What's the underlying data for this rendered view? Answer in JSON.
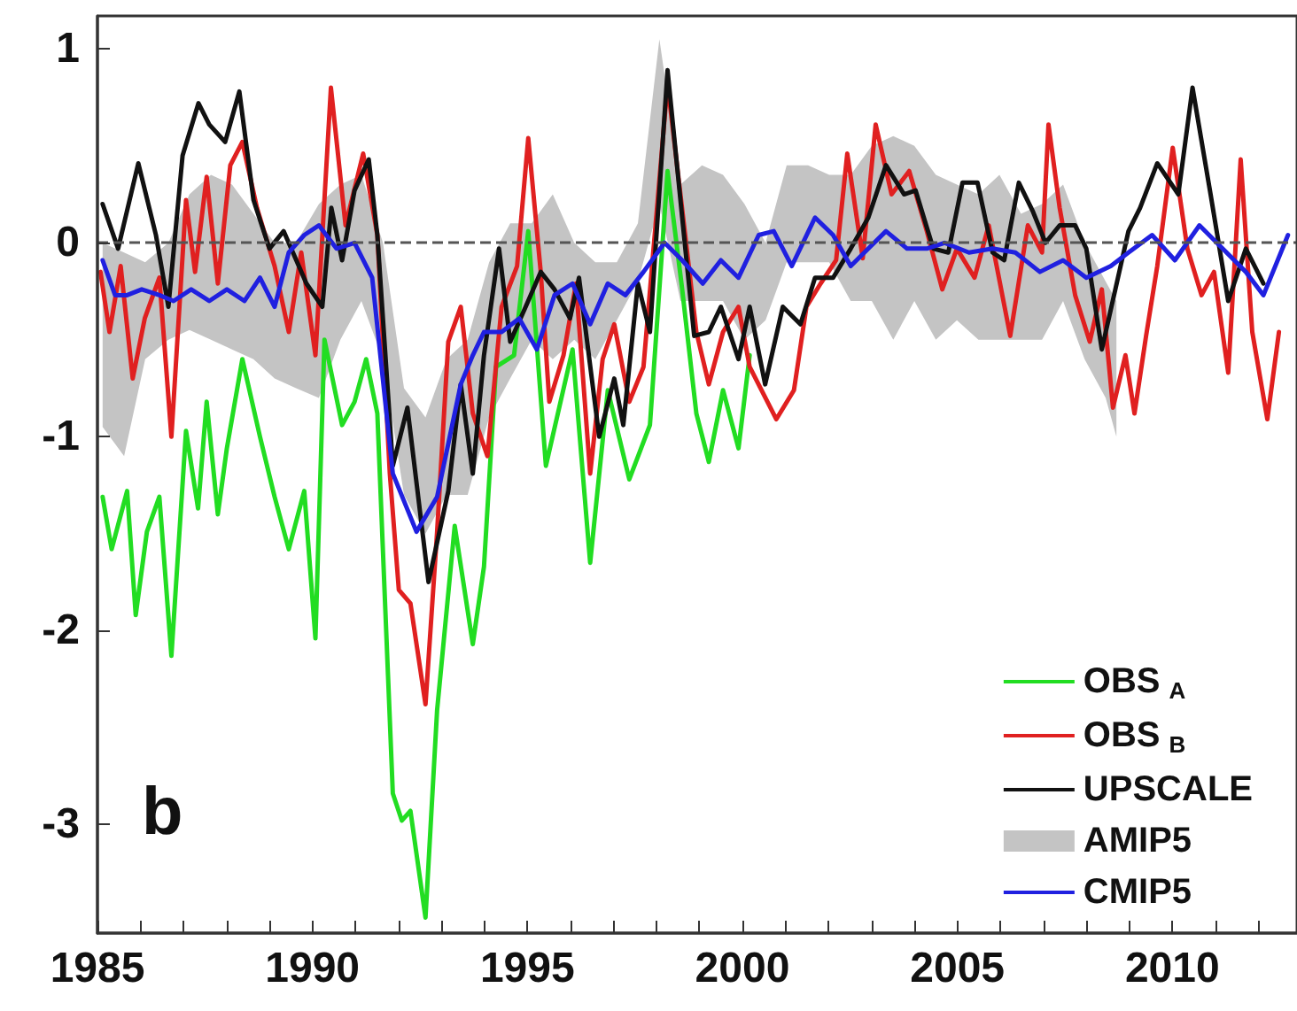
{
  "chart_data": {
    "type": "line",
    "xlim": [
      1985,
      2012.9
    ],
    "ylim": [
      -3.56,
      1.17
    ],
    "xticks": [
      1985,
      {
        "value": 1986,
        "label": null
      },
      {
        "value": 1987,
        "label": null
      },
      {
        "value": 1988,
        "label": null
      },
      {
        "value": 1989,
        "label": null
      },
      1990,
      {
        "value": 1991,
        "label": null
      },
      {
        "value": 1992,
        "label": null
      },
      {
        "value": 1993,
        "label": null
      },
      {
        "value": 1994,
        "label": null
      },
      1995,
      {
        "value": 1996,
        "label": null
      },
      {
        "value": 1997,
        "label": null
      },
      {
        "value": 1998,
        "label": null
      },
      {
        "value": 1999,
        "label": null
      },
      2000,
      {
        "value": 2001,
        "label": null
      },
      {
        "value": 2002,
        "label": null
      },
      {
        "value": 2003,
        "label": null
      },
      {
        "value": 2004,
        "label": null
      },
      2005,
      {
        "value": 2006,
        "label": null
      },
      {
        "value": 2007,
        "label": null
      },
      {
        "value": 2008,
        "label": null
      },
      {
        "value": 2009,
        "label": null
      },
      2010,
      {
        "value": 2011,
        "label": null
      },
      {
        "value": 2012,
        "label": null
      }
    ],
    "yticks": [
      -3,
      -2,
      -1,
      0,
      1
    ],
    "grid": false,
    "legend": "bottom right",
    "marker": "none",
    "line_style": "solid",
    "annotations": [
      "b"
    ],
    "ref_lines": [
      {
        "axis": "y",
        "value": 0,
        "color": "#555555",
        "line_style": "dashed"
      }
    ],
    "series": [
      {
        "name": "OBS$_{A}$",
        "color": "#22dd22",
        "x": [
          1985.12,
          1985.33,
          1985.69,
          1985.89,
          1986.15,
          1986.44,
          1986.72,
          1987.06,
          1987.34,
          1987.54,
          1987.8,
          1988.01,
          1988.37,
          1988.78,
          1989.12,
          1989.45,
          1989.81,
          1990.07,
          1990.28,
          1990.69,
          1990.98,
          1991.25,
          1991.51,
          1991.87,
          1992.08,
          1992.28,
          1992.63,
          1992.9,
          1993.31,
          1993.73,
          1993.99,
          1994.27,
          1994.69,
          1995.02,
          1995.43,
          1996.05,
          1996.46,
          1996.87,
          1997.37,
          1997.85,
          1998.26,
          1998.6,
          1998.93,
          1999.22,
          1999.55,
          1999.91,
          2000.17
        ],
        "values": [
          -1.31,
          -1.58,
          -1.28,
          -1.92,
          -1.49,
          -1.31,
          -2.13,
          -0.97,
          -1.37,
          -0.82,
          -1.4,
          -1.06,
          -0.6,
          -1.0,
          -1.31,
          -1.58,
          -1.28,
          -2.04,
          -0.5,
          -0.94,
          -0.82,
          -0.6,
          -0.88,
          -2.84,
          -2.98,
          -2.93,
          -3.48,
          -2.41,
          -1.46,
          -2.07,
          -1.67,
          -0.64,
          -0.58,
          0.06,
          -1.15,
          -0.55,
          -1.65,
          -0.76,
          -1.22,
          -0.94,
          0.37,
          -0.24,
          -0.88,
          -1.13,
          -0.76,
          -1.06,
          -0.58
        ]
      },
      {
        "name": "OBS$_{B}$",
        "color": "#e02020",
        "x": [
          1985.07,
          1985.28,
          1985.54,
          1985.82,
          1986.1,
          1986.44,
          1986.72,
          1987.06,
          1987.27,
          1987.54,
          1987.8,
          1988.09,
          1988.37,
          1988.71,
          1989.12,
          1989.45,
          1989.74,
          1990.07,
          1990.43,
          1990.77,
          1991.18,
          1991.51,
          1991.8,
          1992.01,
          1992.28,
          1992.63,
          1992.9,
          1993.16,
          1993.45,
          1993.73,
          1994.07,
          1994.4,
          1994.76,
          1995.02,
          1995.31,
          1995.51,
          1995.84,
          1996.13,
          1996.46,
          1996.75,
          1997.02,
          1997.37,
          1997.7,
          1998.26,
          1998.67,
          1998.93,
          1999.22,
          1999.55,
          1999.91,
          2000.17,
          2000.79,
          2001.2,
          2001.49,
          2001.82,
          2002.18,
          2002.44,
          2002.8,
          2003.1,
          2003.47,
          2003.88,
          2004.29,
          2004.65,
          2004.99,
          2005.4,
          2005.73,
          2006.23,
          2006.64,
          2006.97,
          2007.12,
          2007.38,
          2007.74,
          2008.08,
          2008.36,
          2008.62,
          2008.91,
          2009.12,
          2009.39,
          2009.65,
          2010.01,
          2010.35,
          2010.68,
          2010.97,
          2011.3,
          2011.59,
          2011.86,
          2012.21,
          2012.48
        ],
        "values": [
          -0.15,
          -0.46,
          -0.12,
          -0.7,
          -0.39,
          -0.18,
          -1.0,
          0.22,
          -0.15,
          0.34,
          -0.21,
          0.4,
          0.52,
          0.18,
          -0.12,
          -0.46,
          -0.05,
          -0.58,
          0.8,
          0.09,
          0.46,
          0.04,
          -1.19,
          -1.79,
          -1.86,
          -2.38,
          -1.49,
          -0.51,
          -0.33,
          -0.88,
          -1.1,
          -0.33,
          -0.12,
          0.54,
          -0.15,
          -0.82,
          -0.58,
          -0.21,
          -1.19,
          -0.6,
          -0.42,
          -0.82,
          -0.64,
          0.82,
          0.04,
          -0.46,
          -0.73,
          -0.46,
          -0.33,
          -0.64,
          -0.91,
          -0.76,
          -0.33,
          -0.21,
          -0.09,
          0.46,
          -0.08,
          0.61,
          0.25,
          0.37,
          0.06,
          -0.24,
          -0.03,
          -0.18,
          0.09,
          -0.48,
          0.09,
          -0.05,
          0.61,
          0.18,
          -0.27,
          -0.51,
          -0.24,
          -0.85,
          -0.58,
          -0.88,
          -0.48,
          -0.12,
          0.49,
          -0.03,
          -0.27,
          -0.15,
          -0.67,
          0.43,
          -0.46,
          -0.91,
          -0.46
        ]
      },
      {
        "name": "UPSCALE",
        "color": "#111111",
        "x": [
          1985.12,
          1985.48,
          1985.95,
          1986.36,
          1986.65,
          1986.98,
          1987.35,
          1987.6,
          1987.97,
          1988.3,
          1988.63,
          1989.0,
          1989.33,
          1989.86,
          1990.23,
          1990.44,
          1990.69,
          1990.98,
          1991.31,
          1991.51,
          1991.87,
          1992.21,
          1992.7,
          1993.16,
          1993.45,
          1993.73,
          1993.99,
          1994.34,
          1994.6,
          1994.96,
          1995.31,
          1995.63,
          1995.99,
          1996.2,
          1996.67,
          1997.02,
          1997.23,
          1997.57,
          1997.85,
          1998.26,
          1998.6,
          1998.88,
          1999.22,
          1999.5,
          1999.91,
          2000.17,
          2000.53,
          2000.94,
          2001.35,
          2001.69,
          2002.11,
          2002.52,
          2002.93,
          2003.34,
          2003.76,
          2004.03,
          2004.44,
          2004.79,
          2005.12,
          2005.47,
          2005.82,
          2006.09,
          2006.43,
          2006.76,
          2007.05,
          2007.38,
          2007.74,
          2008.0,
          2008.36,
          2008.98,
          2009.25,
          2009.65,
          2010.14,
          2010.47,
          2010.89,
          2011.3,
          2011.71,
          2012.12
        ],
        "values": [
          0.2,
          -0.03,
          0.41,
          0.04,
          -0.33,
          0.45,
          0.72,
          0.61,
          0.52,
          0.78,
          0.22,
          -0.03,
          0.06,
          -0.21,
          -0.33,
          0.18,
          -0.09,
          0.27,
          0.43,
          0.04,
          -1.15,
          -0.85,
          -1.75,
          -1.28,
          -0.73,
          -1.19,
          -0.58,
          -0.03,
          -0.51,
          -0.33,
          -0.15,
          -0.24,
          -0.39,
          -0.18,
          -1.0,
          -0.7,
          -0.94,
          -0.21,
          -0.46,
          0.89,
          0.13,
          -0.48,
          -0.46,
          -0.33,
          -0.6,
          -0.33,
          -0.73,
          -0.33,
          -0.42,
          -0.18,
          -0.18,
          -0.03,
          0.13,
          0.4,
          0.25,
          0.27,
          -0.03,
          -0.05,
          0.31,
          0.31,
          -0.05,
          -0.09,
          0.31,
          0.16,
          0.0,
          0.09,
          0.09,
          -0.03,
          -0.55,
          0.06,
          0.18,
          0.41,
          0.25,
          0.8,
          0.25,
          -0.3,
          -0.03,
          -0.21
        ]
      },
      {
        "name": "AMIP5",
        "color": "#c4c4c4",
        "x": [
          1985.12,
          1985.62,
          1986.11,
          1986.65,
          1987.14,
          1987.64,
          1988.13,
          1988.63,
          1989.12,
          1989.62,
          1990.15,
          1990.65,
          1991.14,
          1991.64,
          1992.13,
          1992.63,
          1993.12,
          1993.61,
          1994.11,
          1994.6,
          1995.1,
          1995.59,
          1996.09,
          1996.58,
          1997.08,
          1997.57,
          1998.07,
          1998.56,
          1999.06,
          1999.55,
          2000.05,
          2000.54,
          2001.03,
          2001.53,
          2002.02,
          2002.52,
          2003.01,
          2003.51,
          2004.0,
          2004.5,
          2004.99,
          2005.49,
          2005.98,
          2006.48,
          2006.97,
          2007.46,
          2007.96,
          2008.45,
          2008.7
        ],
        "lower": [
          -0.95,
          -1.1,
          -0.6,
          -0.5,
          -0.45,
          -0.5,
          -0.55,
          -0.6,
          -0.7,
          -0.75,
          -0.8,
          -0.5,
          -0.3,
          -0.6,
          -1.3,
          -1.5,
          -1.3,
          -1.3,
          -0.9,
          -0.7,
          -0.5,
          -0.6,
          -0.5,
          -0.6,
          -0.4,
          -0.2,
          0.2,
          -0.3,
          -0.3,
          -0.3,
          -0.5,
          -0.4,
          -0.1,
          -0.1,
          -0.1,
          -0.3,
          -0.3,
          -0.5,
          -0.3,
          -0.5,
          -0.4,
          -0.5,
          -0.5,
          -0.5,
          -0.5,
          -0.3,
          -0.6,
          -0.8,
          -1.0
        ],
        "upper": [
          0.0,
          -0.05,
          -0.1,
          0.0,
          0.25,
          0.35,
          0.3,
          0.15,
          0.0,
          0.0,
          0.2,
          0.3,
          0.35,
          0.0,
          -0.75,
          -0.9,
          -0.6,
          -0.5,
          -0.1,
          0.1,
          0.1,
          0.25,
          0.0,
          -0.1,
          -0.1,
          0.1,
          1.05,
          0.3,
          0.4,
          0.35,
          0.2,
          0.0,
          0.4,
          0.4,
          0.35,
          0.35,
          0.5,
          0.55,
          0.5,
          0.35,
          0.3,
          0.25,
          0.35,
          0.15,
          0.2,
          0.3,
          0.0,
          -0.2,
          -0.3
        ],
        "values": [
          null,
          null,
          null,
          null,
          null,
          null,
          null,
          null,
          null,
          null,
          null,
          null,
          null,
          null,
          null,
          null,
          null,
          null,
          null,
          null,
          null,
          null,
          null,
          null,
          null,
          null,
          null,
          null,
          null,
          null,
          null,
          null,
          null,
          null,
          null,
          null,
          null,
          null,
          null,
          null,
          null,
          null,
          null,
          null,
          null,
          null,
          null,
          null,
          null
        ]
      },
      {
        "name": "CMIP5",
        "color": "#2020e0",
        "x": [
          1985.12,
          1985.41,
          1985.69,
          1986.03,
          1986.44,
          1986.77,
          1987.18,
          1987.6,
          1988.01,
          1988.42,
          1988.78,
          1989.12,
          1989.45,
          1989.81,
          1990.15,
          1990.56,
          1990.98,
          1991.39,
          1991.87,
          1992.42,
          1992.9,
          1993.45,
          1993.73,
          1993.99,
          1994.4,
          1994.81,
          1995.22,
          1995.63,
          1996.05,
          1996.46,
          1996.87,
          1997.28,
          1997.7,
          1998.19,
          1998.6,
          1999.08,
          1999.5,
          1999.91,
          2000.38,
          2000.73,
          2001.15,
          2001.69,
          2002.11,
          2002.52,
          2002.93,
          2003.34,
          2003.83,
          2004.29,
          2004.7,
          2005.27,
          2005.82,
          2006.35,
          2006.92,
          2007.46,
          2008.0,
          2008.57,
          2008.98,
          2009.53,
          2010.06,
          2010.63,
          2011.17,
          2011.71,
          2012.12,
          2012.69
        ],
        "values": [
          -0.09,
          -0.27,
          -0.27,
          -0.24,
          -0.27,
          -0.3,
          -0.24,
          -0.3,
          -0.24,
          -0.3,
          -0.18,
          -0.33,
          -0.05,
          0.04,
          0.09,
          -0.03,
          0.0,
          -0.18,
          -1.19,
          -1.49,
          -1.31,
          -0.73,
          -0.58,
          -0.46,
          -0.46,
          -0.39,
          -0.55,
          -0.27,
          -0.21,
          -0.42,
          -0.21,
          -0.27,
          -0.15,
          0.0,
          -0.09,
          -0.21,
          -0.09,
          -0.18,
          0.04,
          0.06,
          -0.12,
          0.13,
          0.04,
          -0.12,
          -0.03,
          0.06,
          -0.03,
          -0.03,
          0.0,
          -0.05,
          -0.03,
          -0.05,
          -0.15,
          -0.09,
          -0.18,
          -0.12,
          -0.05,
          0.04,
          -0.09,
          0.09,
          -0.03,
          -0.15,
          -0.27,
          0.04
        ]
      }
    ]
  }
}
